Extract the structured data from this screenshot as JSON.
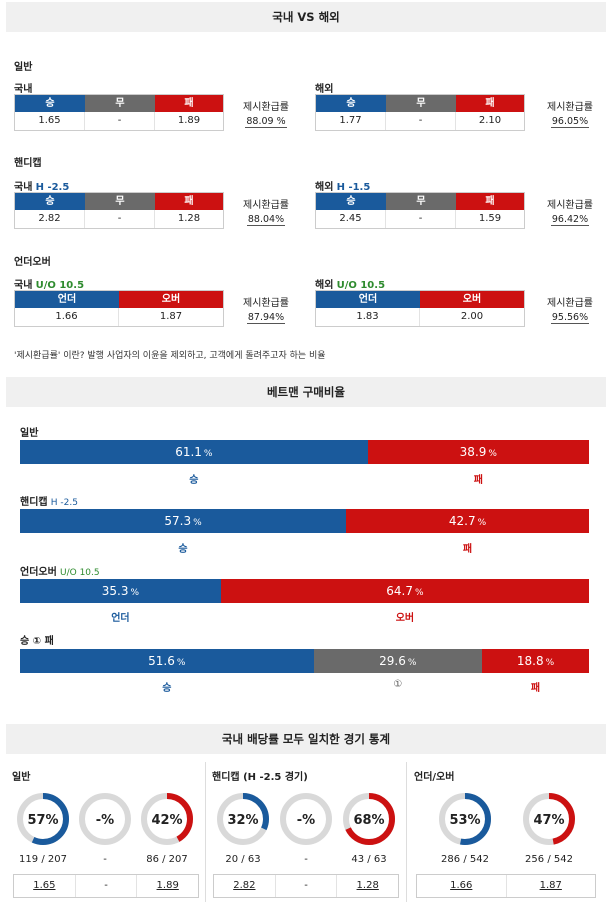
{
  "sections": {
    "match_title": "국내 VS 해외",
    "betman_title": "베트맨 구매비율",
    "stats_title": "국내 배당률 모두 일치한 경기 통계"
  },
  "odds": {
    "general": {
      "label": "일반",
      "domestic": {
        "name": "국내",
        "line": "",
        "h1": "승",
        "h2": "무",
        "h3": "패",
        "v1": "1.65",
        "v2": "-",
        "v3": "1.89",
        "payout_label": "제시환급률",
        "payout": "88.09 %"
      },
      "overseas": {
        "name": "해외",
        "line": "",
        "h1": "승",
        "h2": "무",
        "h3": "패",
        "v1": "1.77",
        "v2": "-",
        "v3": "2.10",
        "payout_label": "제시환급률",
        "payout": "96.05%"
      }
    },
    "handicap": {
      "label": "핸디캡",
      "domestic": {
        "name": "국내",
        "line": "H -2.5",
        "h1": "승",
        "h2": "무",
        "h3": "패",
        "v1": "2.82",
        "v2": "-",
        "v3": "1.28",
        "payout_label": "제시환급률",
        "payout": "88.04%"
      },
      "overseas": {
        "name": "해외",
        "line": "H -1.5",
        "h1": "승",
        "h2": "무",
        "h3": "패",
        "v1": "2.45",
        "v2": "-",
        "v3": "1.59",
        "payout_label": "제시환급률",
        "payout": "96.42%"
      }
    },
    "underover": {
      "label": "언더오버",
      "domestic": {
        "name": "국내",
        "line": "U/O 10.5",
        "h1": "언더",
        "h2": "오버",
        "v1": "1.66",
        "v2": "1.87",
        "payout_label": "제시환급률",
        "payout": "87.94%"
      },
      "overseas": {
        "name": "해외",
        "line": "U/O 10.5",
        "h1": "언더",
        "h2": "오버",
        "v1": "1.83",
        "v2": "2.00",
        "payout_label": "제시환급률",
        "payout": "95.56%"
      }
    },
    "note": "'제시환급률' 이란? 발행 사업자의 이윤을 제외하고, 고객에게 돌려주고자 하는 비율"
  },
  "betman": {
    "general": {
      "label": "일반",
      "line": "",
      "win": 61.1,
      "lose": 38.9,
      "win_text": "61.1",
      "lose_text": "38.9",
      "unit": "%",
      "win_label": "승",
      "lose_label": "패"
    },
    "handicap": {
      "label": "핸디캡",
      "line": "H -2.5",
      "win": 57.3,
      "lose": 42.7,
      "win_text": "57.3",
      "lose_text": "42.7",
      "unit": "%",
      "win_label": "승",
      "lose_label": "패"
    },
    "underover": {
      "label": "언더오버",
      "line": "U/O 10.5",
      "under": 35.3,
      "over": 64.7,
      "under_text": "35.3",
      "over_text": "64.7",
      "unit": "%",
      "under_label": "언더",
      "over_label": "오버"
    },
    "wdl": {
      "label": "승 ① 패",
      "win": 51.6,
      "draw": 29.6,
      "lose": 18.8,
      "win_text": "51.6",
      "draw_text": "29.6",
      "lose_text": "18.8",
      "unit": "%",
      "win_label": "승",
      "draw_label": "①",
      "lose_label": "패"
    }
  },
  "stats": {
    "general": {
      "label": "일반",
      "donuts": [
        {
          "text": "57%",
          "pct": 57,
          "color": "#1a5a9c",
          "count": "119 / 207"
        },
        {
          "text": "-%",
          "pct": 0,
          "color": "#888888",
          "count": "-"
        },
        {
          "text": "42%",
          "pct": 42,
          "color": "#cc1111",
          "count": "86 / 207"
        }
      ],
      "values": [
        "1.65",
        "-",
        "1.89"
      ]
    },
    "handicap": {
      "label": "핸디캡 (H -2.5 경기)",
      "donuts": [
        {
          "text": "32%",
          "pct": 32,
          "color": "#1a5a9c",
          "count": "20 / 63"
        },
        {
          "text": "-%",
          "pct": 0,
          "color": "#888888",
          "count": "-"
        },
        {
          "text": "68%",
          "pct": 68,
          "color": "#cc1111",
          "count": "43 / 63"
        }
      ],
      "values": [
        "2.82",
        "-",
        "1.28"
      ]
    },
    "underover": {
      "label": "언더/오버",
      "donuts": [
        {
          "text": "53%",
          "pct": 53,
          "color": "#1a5a9c",
          "count": "286 / 542"
        },
        {
          "text": "47%",
          "pct": 47,
          "color": "#cc1111",
          "count": "256 / 542"
        }
      ],
      "values": [
        "1.66",
        "1.87"
      ]
    }
  }
}
